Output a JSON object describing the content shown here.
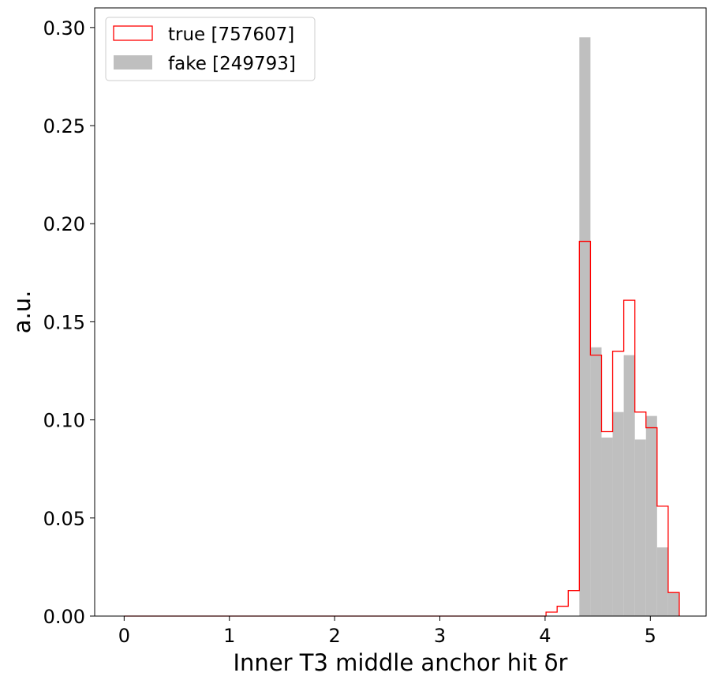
{
  "chart_data": {
    "type": "histogram",
    "xlabel": "Inner T3 middle anchor hit δr",
    "ylabel": "a.u.",
    "xlim": [
      -0.28,
      5.53
    ],
    "ylim": [
      0,
      0.31
    ],
    "xticks": [
      0,
      1,
      2,
      3,
      4,
      5
    ],
    "yticks": [
      0.0,
      0.05,
      0.1,
      0.15,
      0.2,
      0.25,
      0.3
    ],
    "xtick_labels": [
      "0",
      "1",
      "2",
      "3",
      "4",
      "5"
    ],
    "ytick_labels": [
      "0.00",
      "0.05",
      "0.10",
      "0.15",
      "0.20",
      "0.25",
      "0.30"
    ],
    "bin_edges": [
      0.0,
      0.1055,
      0.211,
      0.3165,
      0.422,
      0.5275,
      0.633,
      0.7385,
      0.844,
      0.9495,
      1.055,
      1.1605,
      1.266,
      1.3715,
      1.477,
      1.5825,
      1.688,
      1.7935,
      1.899,
      2.0045,
      2.11,
      2.2155,
      2.321,
      2.4265,
      2.532,
      2.6375,
      2.743,
      2.8485,
      2.954,
      3.0595,
      3.165,
      3.2705,
      3.376,
      3.4815,
      3.587,
      3.6925,
      3.798,
      3.9035,
      4.009,
      4.1145,
      4.22,
      4.3255,
      4.431,
      4.5365,
      4.642,
      4.7475,
      4.853,
      4.9585,
      5.064,
      5.1695,
      5.275
    ],
    "series": [
      {
        "name": "true [757607]",
        "style": "step",
        "color": "#ff0000",
        "values": [
          0,
          0,
          0,
          0,
          0,
          0,
          0,
          0,
          0,
          0,
          0,
          0,
          0,
          0,
          0,
          0,
          0,
          0,
          0,
          0,
          0,
          0,
          0,
          0,
          0,
          0,
          0,
          0,
          0,
          0,
          0,
          0,
          0,
          0,
          0,
          0,
          0,
          0,
          0.002,
          0.005,
          0.013,
          0.191,
          0.133,
          0.094,
          0.135,
          0.161,
          0.104,
          0.096,
          0.056,
          0.012
        ]
      },
      {
        "name": "fake [249793]",
        "style": "filled",
        "color": "#bfbfbf",
        "values": [
          0,
          0,
          0,
          0,
          0,
          0,
          0,
          0,
          0,
          0,
          0,
          0,
          0,
          0,
          0,
          0,
          0,
          0,
          0,
          0,
          0,
          0,
          0,
          0,
          0,
          0,
          0,
          0,
          0,
          0,
          0,
          0,
          0,
          0,
          0,
          0,
          0,
          0,
          0,
          0,
          0,
          0.295,
          0.137,
          0.091,
          0.104,
          0.133,
          0.09,
          0.102,
          0.035,
          0.012
        ]
      }
    ],
    "legend_position": "top-left",
    "grid": false
  }
}
